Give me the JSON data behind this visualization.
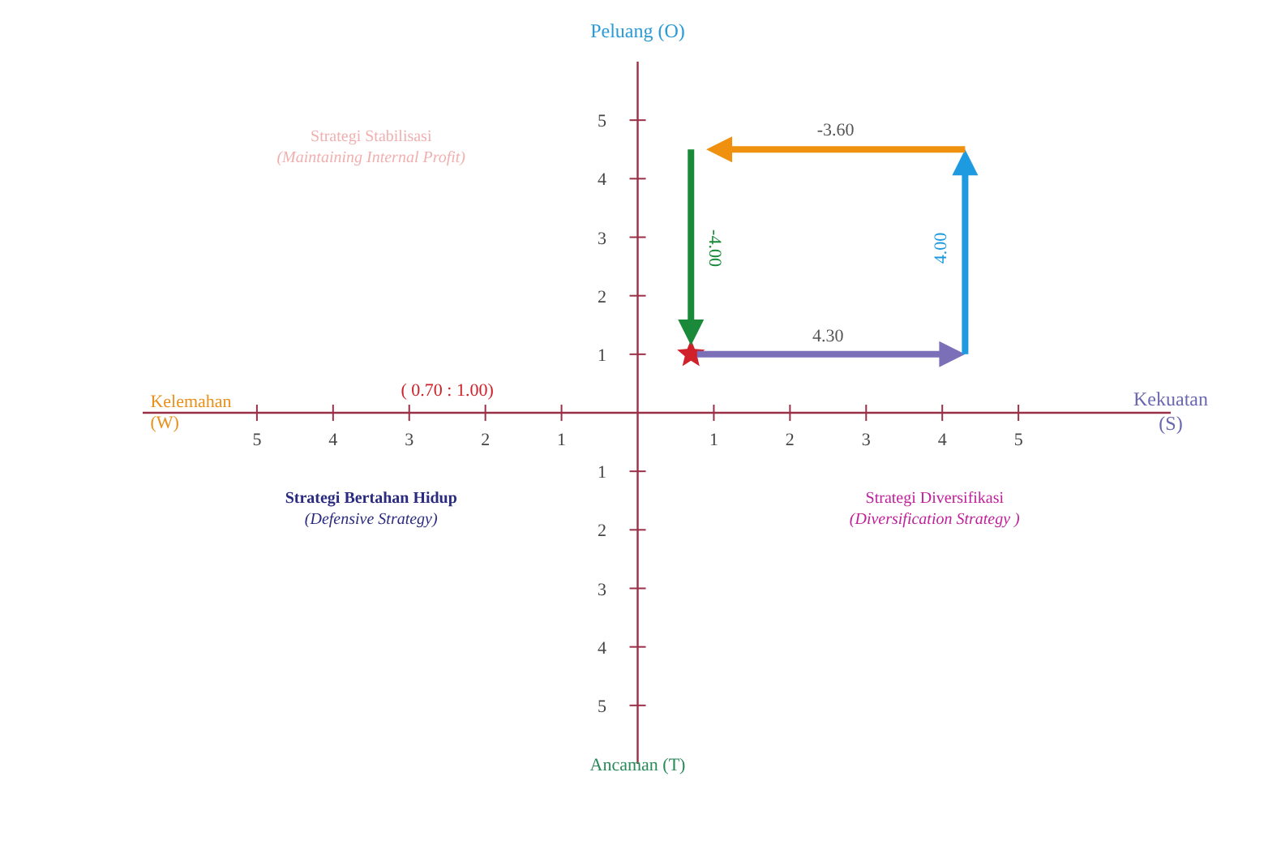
{
  "chart_data": {
    "type": "scatter",
    "xlabel": "Kekuatan (S)",
    "ylabel": "Peluang (O)",
    "xlim": [
      -6.5,
      7
    ],
    "ylim": [
      -6,
      6
    ],
    "xticks": [
      {
        "value": -5,
        "label": "5"
      },
      {
        "value": -4,
        "label": "4"
      },
      {
        "value": -3,
        "label": "3"
      },
      {
        "value": -2,
        "label": "2"
      },
      {
        "value": -1,
        "label": "1"
      },
      1,
      2,
      3,
      4,
      5
    ],
    "yticks": [
      {
        "value": -5,
        "label": "5"
      },
      {
        "value": -4,
        "label": "4"
      },
      {
        "value": -3,
        "label": "3"
      },
      {
        "value": -2,
        "label": "2"
      },
      {
        "value": -1,
        "label": "1"
      },
      1,
      2,
      3,
      4,
      5
    ],
    "marker": "star",
    "series": [
      {
        "color": "#d0202a",
        "x": [
          0.7
        ],
        "values": [
          1
        ]
      }
    ],
    "annotations": [
      "Kelemahan\n(W)",
      "Ancaman (T)",
      "Strategi Stabilisasi\n(Maintaining Internal Profit)",
      "Strategi Bertahan Hidup\n(Defensive Strategy)",
      "Strategi Diversifikasi\n(Diversification Strategy )",
      "( 0.70 : 1.00)",
      "4.30",
      "4.00",
      "-3.60",
      "-4.00"
    ]
  }
}
